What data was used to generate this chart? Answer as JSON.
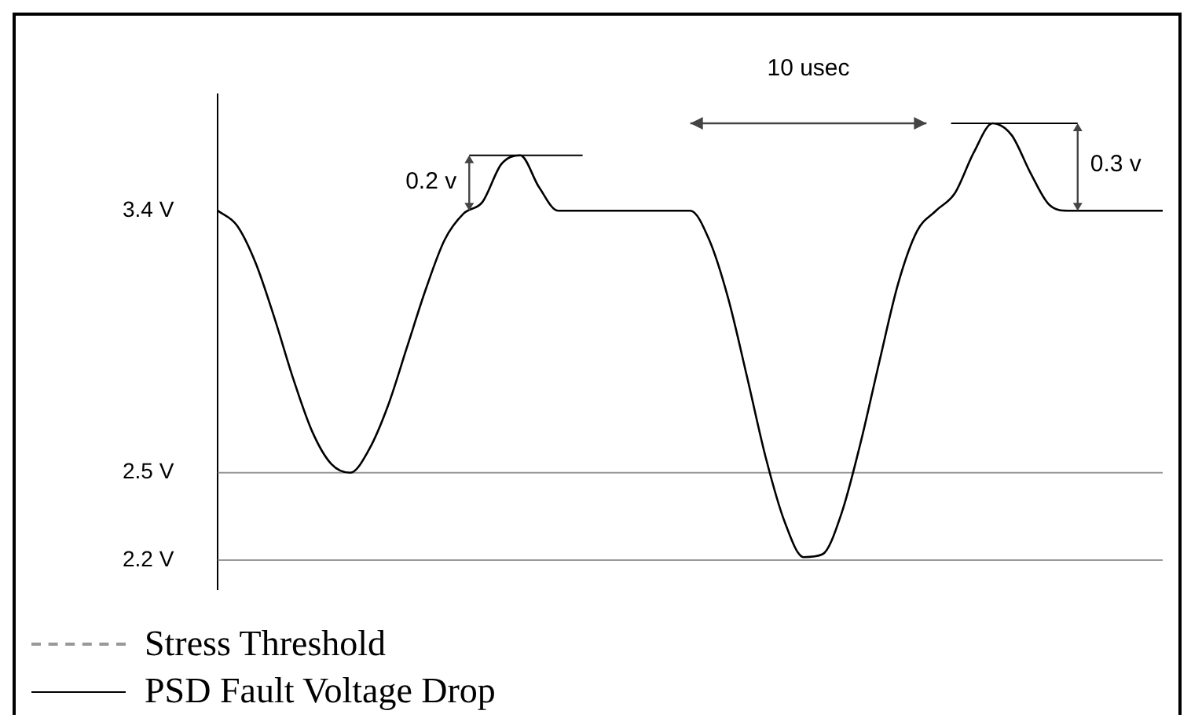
{
  "chart_data": {
    "type": "line",
    "categories": [
      null,
      null,
      null,
      null,
      null,
      null,
      null,
      null,
      null,
      null,
      null,
      null,
      null,
      null,
      null,
      null,
      null,
      null,
      null,
      null,
      null,
      null,
      null,
      null,
      null,
      null,
      null,
      null,
      null,
      null,
      null,
      null,
      null,
      null,
      null,
      null,
      null,
      null,
      null,
      null,
      null,
      null,
      null,
      null,
      null,
      null,
      null,
      null,
      null,
      null,
      null
    ],
    "series": [
      {
        "name": "PSD Fault Voltage Drop",
        "color": "#000000",
        "values": [
          3.4,
          3.35,
          3.22,
          3.03,
          2.82,
          2.64,
          2.53,
          2.5,
          2.58,
          2.73,
          2.93,
          3.13,
          3.3,
          3.39,
          3.43,
          3.56,
          3.59,
          3.48,
          3.4,
          3.4,
          3.4,
          3.4,
          3.4,
          3.4,
          3.4,
          3.4,
          3.3,
          3.1,
          2.83,
          2.55,
          2.33,
          2.21,
          2.22,
          2.36,
          2.6,
          2.88,
          3.15,
          3.33,
          3.4,
          3.46,
          3.6,
          3.7,
          3.66,
          3.53,
          3.42,
          3.4,
          3.4,
          3.4,
          3.4,
          3.4,
          3.4
        ]
      }
    ],
    "ylim": [
      2.1,
      3.8
    ],
    "yticks": [
      {
        "value": 3.4,
        "label": "3.4 V"
      },
      {
        "value": 2.5,
        "label": "2.5 V"
      },
      {
        "value": 2.2,
        "label": "2.2 V"
      }
    ],
    "tick_labels": "y",
    "ref_lines": [
      {
        "axis": "y",
        "value": 2.5,
        "label": "Stress Threshold",
        "color": "#999999"
      },
      {
        "axis": "y",
        "value": 2.2,
        "color": "#999999"
      }
    ],
    "annotations": [
      "10 usec",
      "0.2 v",
      "0.3 v"
    ],
    "legend": "bottom left"
  }
}
